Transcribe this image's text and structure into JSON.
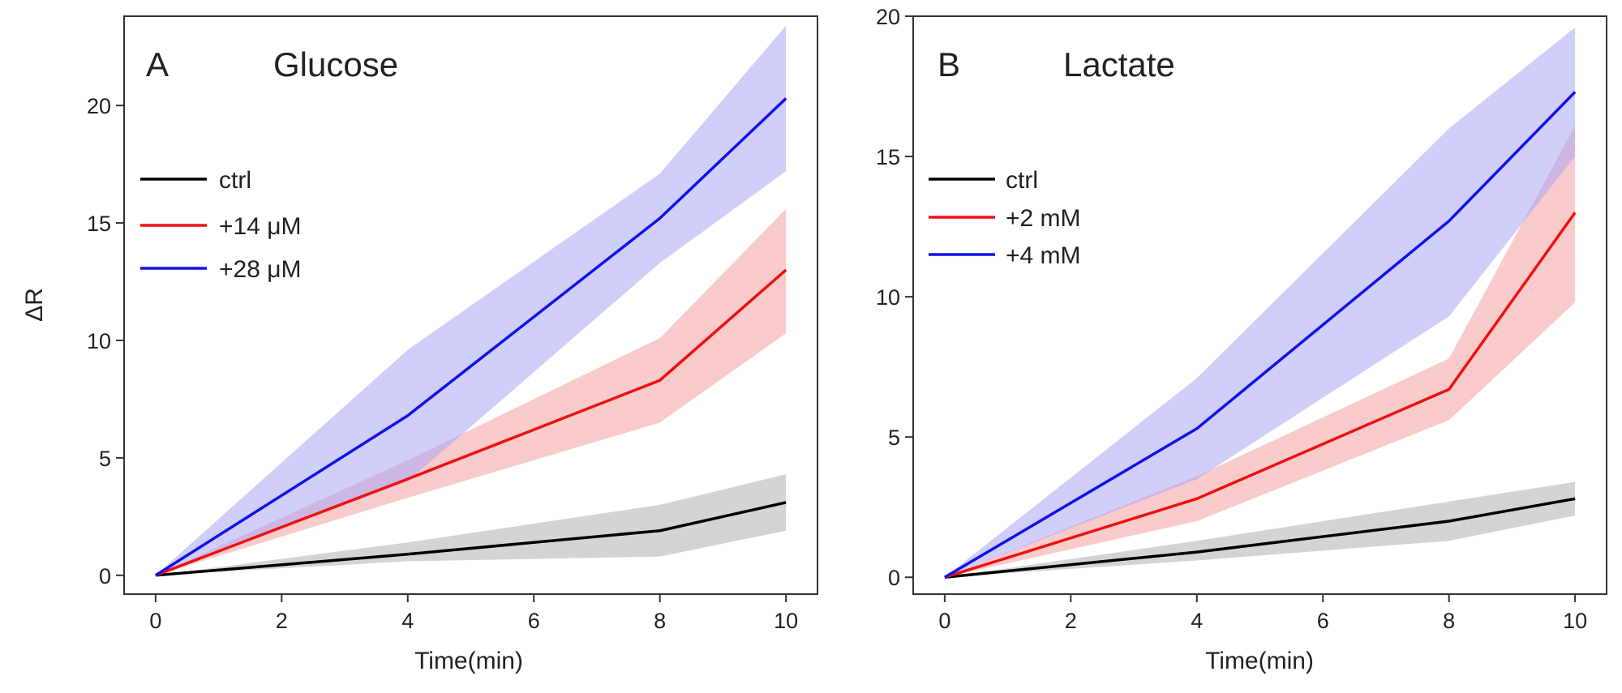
{
  "chart_data": [
    {
      "type": "line",
      "panel_letter": "A",
      "title": "Glucose",
      "xlabel": "Time(min)",
      "ylabel": "ΔR",
      "xlim": [
        -0.5,
        10.5
      ],
      "ylim": [
        -0.8,
        23.8
      ],
      "xticks": [
        0,
        2,
        4,
        6,
        8,
        10
      ],
      "yticks": [
        0,
        5,
        10,
        15,
        20
      ],
      "legend_position": "upper-left",
      "x": [
        0,
        4,
        8,
        10
      ],
      "series": [
        {
          "name": "ctrl",
          "color": "#000000",
          "band_color": "#b0b0b0",
          "values": [
            0,
            0.9,
            1.9,
            3.1
          ],
          "lower": [
            0,
            0.6,
            0.8,
            1.9
          ],
          "upper": [
            0,
            1.4,
            3.0,
            4.3
          ]
        },
        {
          "name": "+14 μM",
          "color": "#ee1111",
          "band_color": "#f5a0a0",
          "values": [
            0,
            4.1,
            8.3,
            13.0
          ],
          "lower": [
            0,
            3.3,
            6.5,
            10.3
          ],
          "upper": [
            0,
            4.9,
            10.1,
            15.6
          ]
        },
        {
          "name": "+28 μM",
          "color": "#1111ee",
          "band_color": "#a8a8f6",
          "values": [
            0,
            6.8,
            15.2,
            20.3
          ],
          "lower": [
            0,
            4.0,
            13.3,
            17.2
          ],
          "upper": [
            0,
            9.6,
            17.1,
            23.4
          ]
        }
      ]
    },
    {
      "type": "line",
      "panel_letter": "B",
      "title": "Lactate",
      "xlabel": "Time(min)",
      "ylabel": "",
      "xlim": [
        -0.5,
        10.5
      ],
      "ylim": [
        -0.6,
        20.0
      ],
      "xticks": [
        0,
        2,
        4,
        6,
        8,
        10
      ],
      "yticks": [
        0,
        5,
        10,
        15,
        20
      ],
      "legend_position": "upper-left",
      "x": [
        0,
        4,
        8,
        10
      ],
      "series": [
        {
          "name": "ctrl",
          "color": "#000000",
          "band_color": "#b0b0b0",
          "values": [
            0,
            0.9,
            2.0,
            2.8
          ],
          "lower": [
            0,
            0.6,
            1.3,
            2.2
          ],
          "upper": [
            0,
            1.3,
            2.7,
            3.4
          ]
        },
        {
          "name": "+2 mM",
          "color": "#ee1111",
          "band_color": "#f5a0a0",
          "values": [
            0,
            2.8,
            6.7,
            13.0
          ],
          "lower": [
            0,
            2.0,
            5.6,
            9.8
          ],
          "upper": [
            0,
            3.6,
            7.8,
            16.1
          ]
        },
        {
          "name": "+4 mM",
          "color": "#1111ee",
          "band_color": "#a8a8f6",
          "values": [
            0,
            5.3,
            12.7,
            17.3
          ],
          "lower": [
            0,
            3.5,
            9.3,
            15.0
          ],
          "upper": [
            0,
            7.1,
            16.0,
            19.6
          ]
        }
      ]
    }
  ]
}
